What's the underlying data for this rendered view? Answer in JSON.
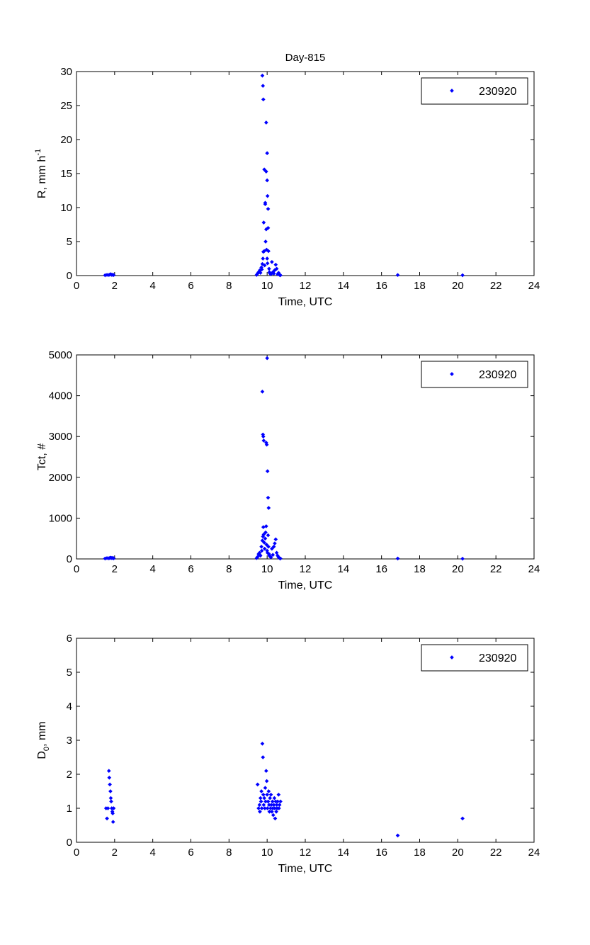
{
  "figure": {
    "title": "Day-815"
  },
  "chart_data": [
    {
      "type": "scatter",
      "title": "Day-815",
      "xlabel": "Time, UTC",
      "ylabel_main": "R, mm h",
      "ylabel_sup": "-1",
      "xlim": [
        0,
        24
      ],
      "ylim": [
        0,
        30
      ],
      "xticks": [
        "0",
        "2",
        "4",
        "6",
        "8",
        "10",
        "12",
        "14",
        "16",
        "18",
        "20",
        "22",
        "24"
      ],
      "yticks": [
        "0",
        "5",
        "10",
        "15",
        "20",
        "25",
        "30"
      ],
      "legend": {
        "position": "top-right",
        "entries": [
          "230920"
        ]
      },
      "series": [
        {
          "name": "230920",
          "color": "#0000ff",
          "x": [
            1.5,
            1.6,
            1.7,
            1.75,
            1.8,
            1.85,
            1.9,
            1.95,
            9.45,
            9.5,
            9.55,
            9.6,
            9.62,
            9.65,
            9.7,
            9.72,
            9.75,
            9.78,
            9.8,
            9.82,
            9.85,
            9.87,
            9.9,
            9.92,
            9.95,
            9.97,
            10.0,
            10.02,
            10.05,
            10.07,
            10.1,
            10.12,
            10.15,
            10.2,
            10.25,
            10.3,
            10.35,
            10.4,
            10.45,
            10.5,
            10.55,
            10.6,
            10.65,
            10.7,
            9.75,
            9.78,
            9.8,
            9.85,
            9.9,
            9.95,
            9.95,
            10.0,
            10.0,
            10.02,
            10.05,
            16.85,
            20.25
          ],
          "y": [
            0.05,
            0.1,
            0.08,
            0.15,
            0.2,
            0.1,
            0.12,
            0.08,
            0.1,
            0.3,
            0.5,
            0.6,
            0.8,
            0.4,
            1.2,
            0.9,
            1.7,
            2.5,
            3.5,
            7.8,
            3.6,
            1.5,
            10.5,
            5.0,
            6.8,
            3.8,
            2.5,
            1.8,
            7.0,
            3.6,
            1.0,
            0.5,
            0.3,
            0.2,
            2.0,
            0.5,
            0.3,
            0.8,
            1.6,
            1.0,
            0.2,
            0.4,
            0.1,
            0.05,
            29.4,
            27.9,
            25.9,
            15.6,
            10.7,
            22.5,
            15.3,
            18.0,
            14.0,
            11.7,
            9.8,
            0.08,
            0.05
          ]
        }
      ]
    },
    {
      "type": "scatter",
      "xlabel": "Time, UTC",
      "ylabel": "Tct, #",
      "xlim": [
        0,
        24
      ],
      "ylim": [
        0,
        5000
      ],
      "xticks": [
        "0",
        "2",
        "4",
        "6",
        "8",
        "10",
        "12",
        "14",
        "16",
        "18",
        "20",
        "22",
        "24"
      ],
      "yticks": [
        "0",
        "1000",
        "2000",
        "3000",
        "4000",
        "5000"
      ],
      "legend": {
        "position": "top-right",
        "entries": [
          "230920"
        ]
      },
      "series": [
        {
          "name": "230920",
          "color": "#0000ff",
          "x": [
            1.5,
            1.6,
            1.7,
            1.75,
            1.8,
            1.85,
            1.9,
            1.95,
            9.45,
            9.5,
            9.55,
            9.6,
            9.62,
            9.65,
            9.7,
            9.72,
            9.75,
            9.78,
            9.8,
            9.82,
            9.85,
            9.87,
            9.9,
            9.92,
            9.95,
            9.97,
            10.0,
            10.02,
            10.05,
            10.07,
            10.1,
            10.12,
            10.15,
            10.2,
            10.25,
            10.3,
            10.35,
            10.4,
            10.45,
            10.5,
            10.55,
            10.6,
            10.65,
            10.7,
            9.75,
            9.78,
            9.8,
            9.82,
            9.95,
            9.98,
            10.0,
            10.02,
            10.05,
            10.08,
            16.85,
            20.25
          ],
          "y": [
            10,
            20,
            15,
            25,
            30,
            20,
            25,
            15,
            20,
            50,
            120,
            150,
            100,
            80,
            300,
            200,
            450,
            550,
            780,
            600,
            400,
            250,
            500,
            650,
            800,
            350,
            200,
            150,
            580,
            300,
            120,
            80,
            60,
            40,
            250,
            100,
            300,
            380,
            480,
            150,
            80,
            40,
            20,
            10,
            4100,
            3050,
            3000,
            2900,
            2850,
            2800,
            4920,
            2150,
            1500,
            1250,
            10,
            5
          ]
        }
      ]
    },
    {
      "type": "scatter",
      "xlabel": "Time, UTC",
      "ylabel_main": "D",
      "ylabel_sub": "0",
      "ylabel_tail": ", mm",
      "xlim": [
        0,
        24
      ],
      "ylim": [
        0,
        6
      ],
      "xticks": [
        "0",
        "2",
        "4",
        "6",
        "8",
        "10",
        "12",
        "14",
        "16",
        "18",
        "20",
        "22",
        "24"
      ],
      "yticks": [
        "0",
        "1",
        "2",
        "3",
        "4",
        "5",
        "6"
      ],
      "legend": {
        "position": "top-right",
        "entries": [
          "230920"
        ]
      },
      "series": [
        {
          "name": "230920",
          "color": "#0000ff",
          "x": [
            1.55,
            1.6,
            1.65,
            1.7,
            1.72,
            1.75,
            1.78,
            1.8,
            1.82,
            1.85,
            1.88,
            1.9,
            1.92,
            1.95,
            9.5,
            9.55,
            9.6,
            9.62,
            9.65,
            9.68,
            9.7,
            9.72,
            9.75,
            9.78,
            9.8,
            9.82,
            9.85,
            9.88,
            9.9,
            9.92,
            9.95,
            9.98,
            10.0,
            10.02,
            10.05,
            10.08,
            10.1,
            10.12,
            10.15,
            10.18,
            10.2,
            10.22,
            10.25,
            10.28,
            10.3,
            10.32,
            10.35,
            10.38,
            10.4,
            10.42,
            10.45,
            10.48,
            10.5,
            10.52,
            10.55,
            10.6,
            10.62,
            10.65,
            10.7,
            16.85,
            20.25
          ],
          "y": [
            1.0,
            0.7,
            1.0,
            2.1,
            1.9,
            1.7,
            1.5,
            1.3,
            1.2,
            1.0,
            0.9,
            0.85,
            0.6,
            1.0,
            1.7,
            1.0,
            1.1,
            0.9,
            1.3,
            1.2,
            1.5,
            1.0,
            2.9,
            2.5,
            1.4,
            1.1,
            1.3,
            1.0,
            1.6,
            1.2,
            2.1,
            1.8,
            1.4,
            1.0,
            1.2,
            1.5,
            1.1,
            0.9,
            1.3,
            1.0,
            1.4,
            1.1,
            0.9,
            1.2,
            1.0,
            0.8,
            1.1,
            1.3,
            1.0,
            0.7,
            1.2,
            0.9,
            1.1,
            1.0,
            1.2,
            1.4,
            1.0,
            1.1,
            1.2,
            0.2,
            0.7
          ]
        }
      ]
    }
  ]
}
